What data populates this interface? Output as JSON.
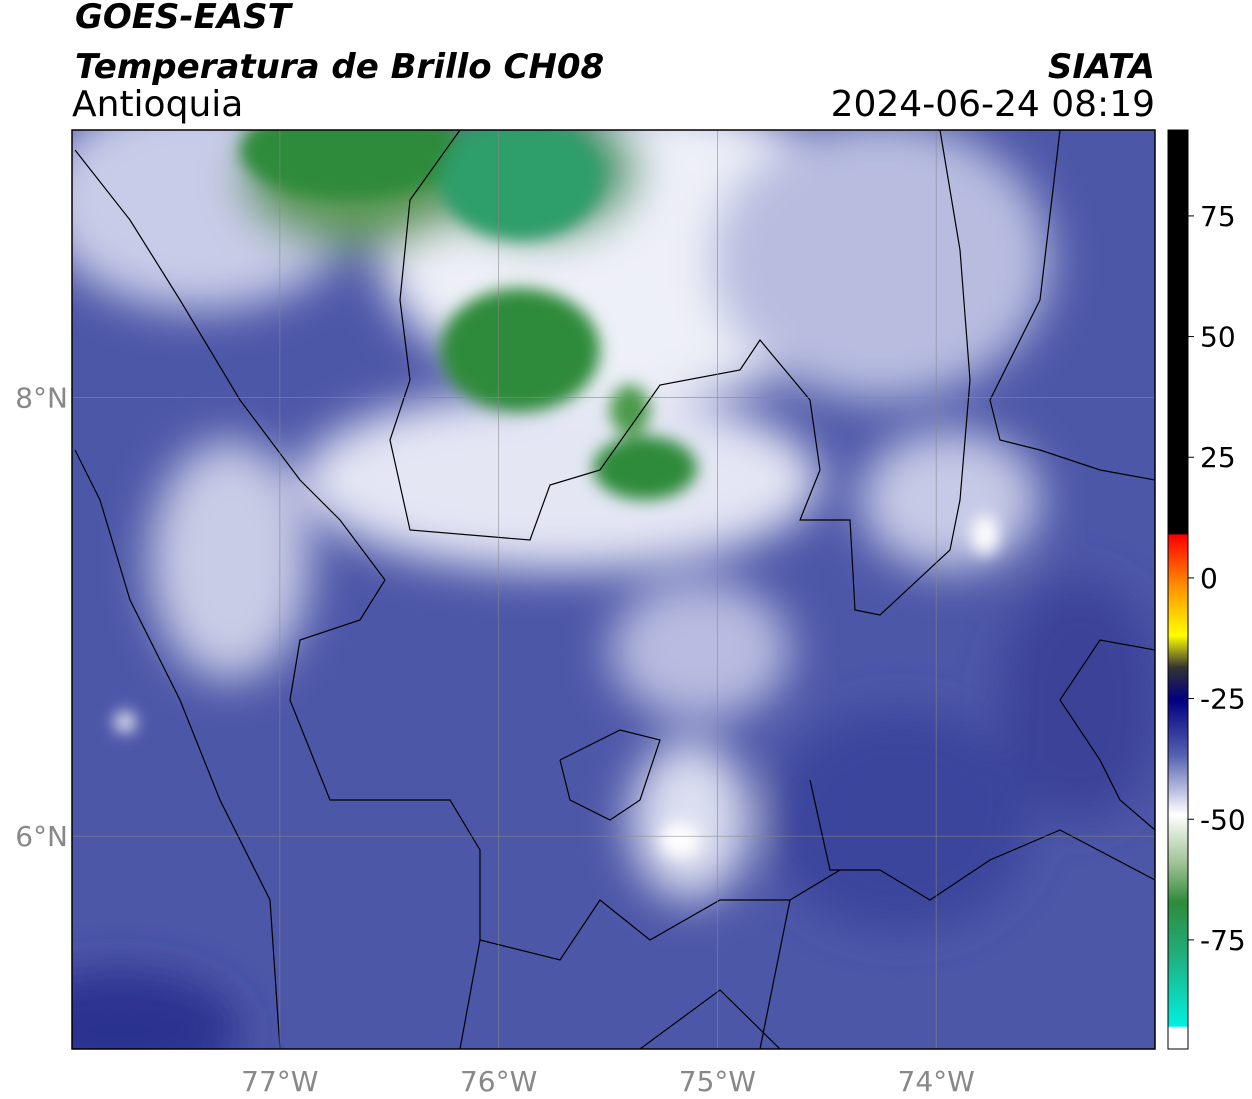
{
  "header": {
    "title": "GOES-EAST",
    "subtitle": "Temperatura de Brillo CH08",
    "region": "Antioquia",
    "source": "SIATA",
    "datetime": "2024-06-24 08:19"
  },
  "map": {
    "xlim": [
      -77.95,
      -73.0
    ],
    "ylim": [
      5.03,
      9.22
    ],
    "xticks": [
      {
        "value": -77,
        "label": "77°W"
      },
      {
        "value": -76,
        "label": "76°W"
      },
      {
        "value": -75,
        "label": "75°W"
      },
      {
        "value": -74,
        "label": "74°W"
      }
    ],
    "yticks": [
      {
        "value": 6,
        "label": "6°N"
      },
      {
        "value": 8,
        "label": "8°N"
      }
    ],
    "grid": true
  },
  "colorbar": {
    "lim": [
      -97.6,
      92.8
    ],
    "ticks": [
      -75,
      -50,
      -25,
      0,
      25,
      50,
      75
    ]
  }
}
